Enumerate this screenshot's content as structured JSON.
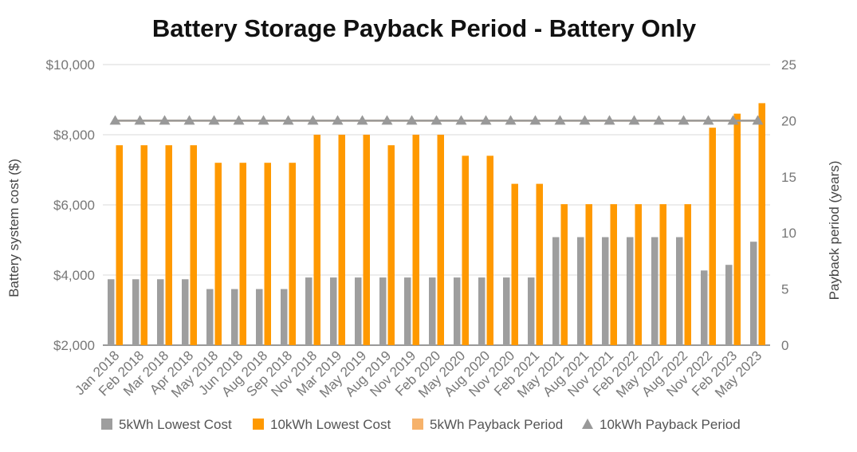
{
  "chart_data": {
    "type": "bar",
    "title": "Battery Storage Payback Period - Battery Only",
    "ylabel": "Battery system cost ($)",
    "y2label": "Payback period (years)",
    "ylim": [
      2000,
      10000
    ],
    "y2lim": [
      0,
      25
    ],
    "yticks": [
      "$2,000",
      "$4,000",
      "$6,000",
      "$8,000",
      "$10,000"
    ],
    "y2ticks": [
      "0",
      "5",
      "10",
      "15",
      "20",
      "25"
    ],
    "grid": true,
    "legend_position": "bottom",
    "categories": [
      "Jan 2018",
      "Feb 2018",
      "Mar 2018",
      "Apr 2018",
      "May 2018",
      "Jun 2018",
      "Aug 2018",
      "Sep 2018",
      "Nov 2018",
      "Mar 2019",
      "May 2019",
      "Aug 2019",
      "Nov 2019",
      "Feb 2020",
      "May 2020",
      "Aug 2020",
      "Nov 2020",
      "Feb 2021",
      "May 2021",
      "Aug 2021",
      "Nov 2021",
      "Feb 2022",
      "May 2022",
      "Aug 2022",
      "Nov 2022",
      "Feb 2023",
      "May 2023"
    ],
    "series": [
      {
        "name": "5kWh Lowest Cost",
        "type": "bar",
        "axis": "left",
        "color": "#9e9e9e",
        "values": [
          3880,
          3880,
          3880,
          3880,
          3600,
          3600,
          3600,
          3600,
          3930,
          3930,
          3930,
          3930,
          3930,
          3930,
          3930,
          3930,
          3930,
          3930,
          5080,
          5080,
          5080,
          5080,
          5080,
          5080,
          4130,
          4290,
          4950
        ]
      },
      {
        "name": "10kWh Lowest Cost",
        "type": "bar",
        "axis": "left",
        "color": "#ff9900",
        "values": [
          7700,
          7700,
          7700,
          7700,
          7200,
          7200,
          7200,
          7200,
          8000,
          8000,
          8000,
          7700,
          8000,
          8000,
          7400,
          7400,
          6600,
          6600,
          6020,
          6020,
          6020,
          6020,
          6020,
          6020,
          8200,
          8600,
          8900
        ]
      },
      {
        "name": "5kWh Payback Period",
        "type": "line",
        "axis": "right",
        "color": "#f6b26b",
        "values": [
          20,
          20,
          20,
          20,
          20,
          20,
          20,
          20,
          20,
          20,
          20,
          20,
          20,
          20,
          20,
          20,
          20,
          20,
          20,
          20,
          20,
          20,
          20,
          20,
          20,
          20,
          20
        ]
      },
      {
        "name": "10kWh Payback Period",
        "type": "line",
        "axis": "right",
        "marker": "triangle",
        "color": "#999999",
        "values": [
          20,
          20,
          20,
          20,
          20,
          20,
          20,
          20,
          20,
          20,
          20,
          20,
          20,
          20,
          20,
          20,
          20,
          20,
          20,
          20,
          20,
          20,
          20,
          20,
          20,
          20,
          20
        ]
      }
    ]
  }
}
